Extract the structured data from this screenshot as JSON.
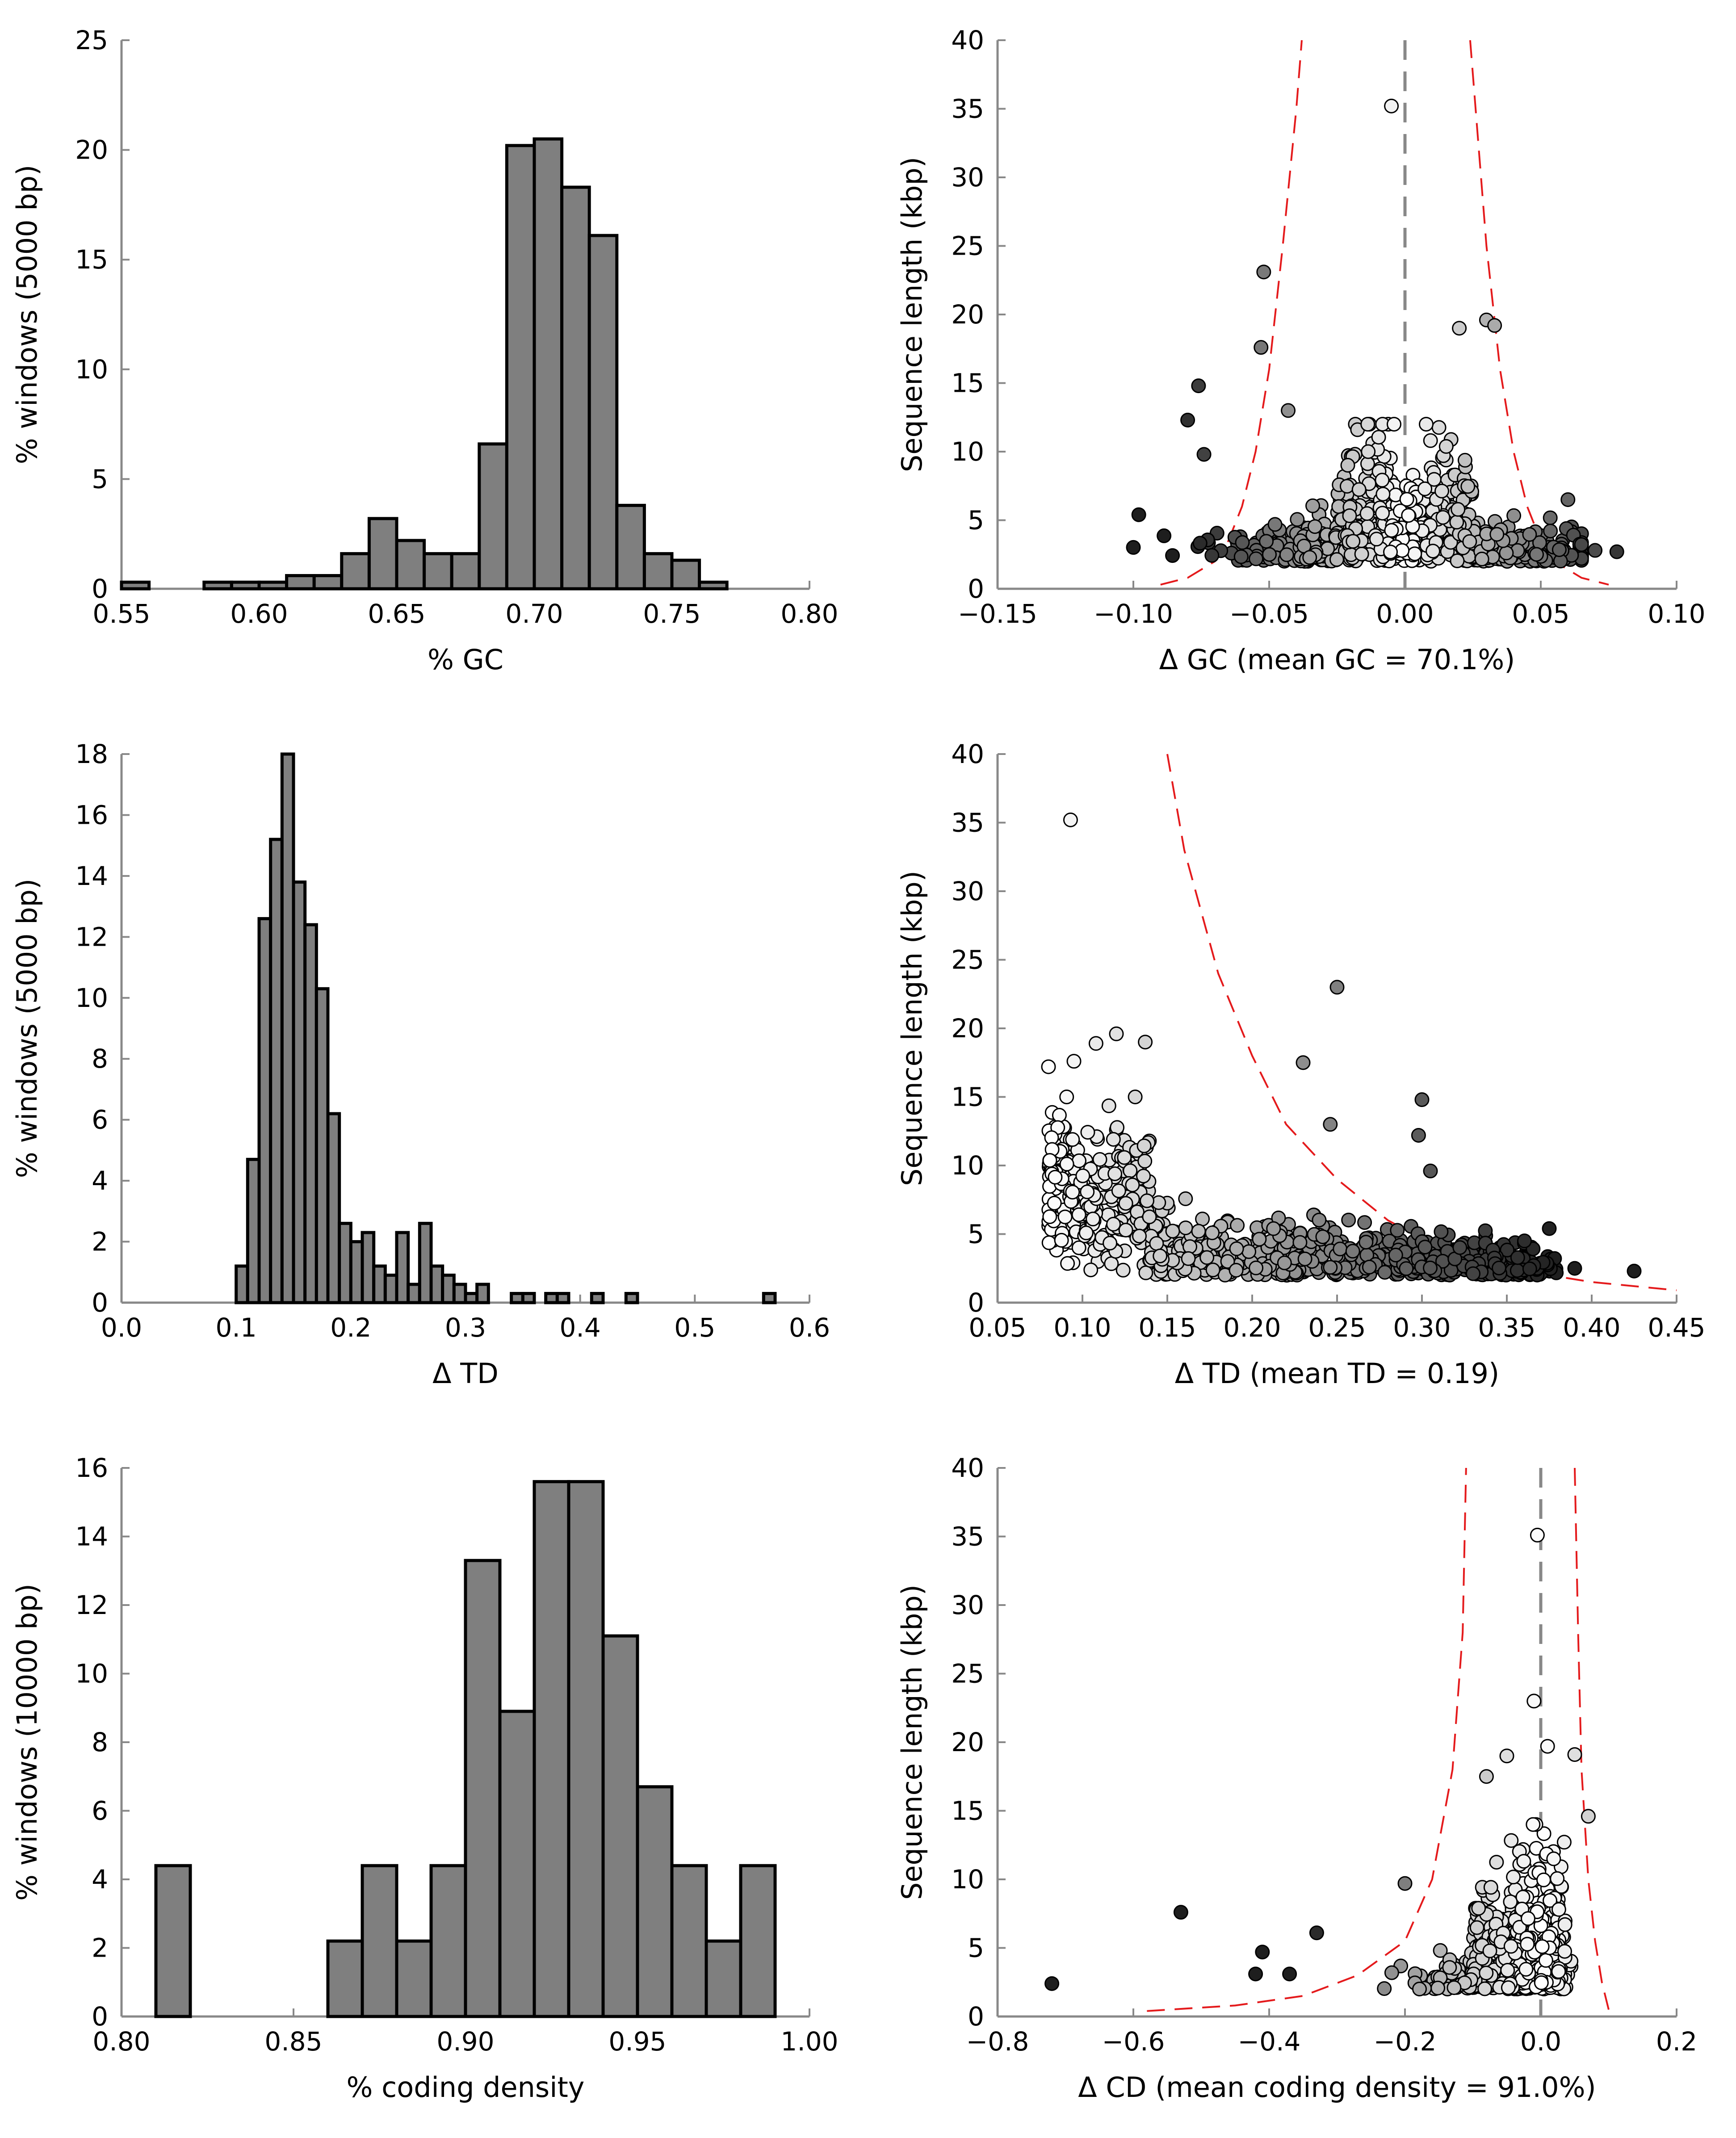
{
  "chart_data": [
    {
      "type": "bar",
      "panel": "gc-histogram",
      "xlabel": "% GC",
      "ylabel": "% windows (5000 bp)",
      "xlim": [
        0.55,
        0.8
      ],
      "ylim": [
        0,
        25
      ],
      "xticks": [
        "0.55",
        "0.60",
        "0.65",
        "0.70",
        "0.75",
        "0.80"
      ],
      "yticks": [
        "0",
        "5",
        "10",
        "15",
        "20",
        "25"
      ],
      "bin_width": 0.01,
      "bins": [
        {
          "x": 0.55,
          "value": 0.3
        },
        {
          "x": 0.58,
          "value": 0.3
        },
        {
          "x": 0.59,
          "value": 0.3
        },
        {
          "x": 0.6,
          "value": 0.3
        },
        {
          "x": 0.61,
          "value": 0.6
        },
        {
          "x": 0.62,
          "value": 0.6
        },
        {
          "x": 0.63,
          "value": 1.6
        },
        {
          "x": 0.64,
          "value": 3.2
        },
        {
          "x": 0.65,
          "value": 2.2
        },
        {
          "x": 0.66,
          "value": 1.6
        },
        {
          "x": 0.67,
          "value": 1.6
        },
        {
          "x": 0.68,
          "value": 6.6
        },
        {
          "x": 0.69,
          "value": 20.2
        },
        {
          "x": 0.7,
          "value": 20.5
        },
        {
          "x": 0.71,
          "value": 18.3
        },
        {
          "x": 0.72,
          "value": 16.1
        },
        {
          "x": 0.73,
          "value": 3.8
        },
        {
          "x": 0.74,
          "value": 1.6
        },
        {
          "x": 0.75,
          "value": 1.3
        },
        {
          "x": 0.76,
          "value": 0.3
        }
      ]
    },
    {
      "type": "scatter",
      "panel": "gc-scatter",
      "xlabel": "Δ GC (mean GC = 70.1%)",
      "ylabel": "Sequence length (kbp)",
      "xlim": [
        -0.15,
        0.1
      ],
      "ylim": [
        0,
        40
      ],
      "xticks": [
        "−0.15",
        "−0.10",
        "−0.05",
        "0.00",
        "0.05",
        "0.10"
      ],
      "yticks": [
        "0",
        "5",
        "10",
        "15",
        "20",
        "25",
        "30",
        "35",
        "40"
      ],
      "center_line": 0.0,
      "threshold_curves": [
        [
          [
            -0.09,
            0.3
          ],
          [
            -0.08,
            0.8
          ],
          [
            -0.07,
            2
          ],
          [
            -0.065,
            3.5
          ],
          [
            -0.06,
            6
          ],
          [
            -0.055,
            10
          ],
          [
            -0.05,
            16
          ],
          [
            -0.045,
            25
          ],
          [
            -0.04,
            35
          ],
          [
            -0.038,
            40
          ]
        ],
        [
          [
            0.024,
            40
          ],
          [
            0.026,
            35
          ],
          [
            0.03,
            25
          ],
          [
            0.035,
            16
          ],
          [
            0.04,
            10
          ],
          [
            0.045,
            6
          ],
          [
            0.05,
            3.5
          ],
          [
            0.055,
            2
          ],
          [
            0.065,
            0.8
          ],
          [
            0.075,
            0.3
          ]
        ]
      ],
      "highlighted_points": [
        {
          "x": -0.005,
          "y": 35.2
        },
        {
          "x": -0.052,
          "y": 23.1
        },
        {
          "x": -0.053,
          "y": 17.6
        },
        {
          "x": -0.076,
          "y": 14.8
        },
        {
          "x": -0.08,
          "y": 12.3
        },
        {
          "x": -0.074,
          "y": 9.8
        },
        {
          "x": -0.043,
          "y": 13.0
        },
        {
          "x": -0.098,
          "y": 5.4
        },
        {
          "x": 0.078,
          "y": 2.7
        },
        {
          "x": 0.02,
          "y": 19.0
        },
        {
          "x": 0.03,
          "y": 19.6
        },
        {
          "x": 0.033,
          "y": 19.2
        },
        {
          "x": 0.06,
          "y": 6.5
        },
        {
          "x": 0.07,
          "y": 2.8
        }
      ]
    },
    {
      "type": "bar",
      "panel": "td-histogram",
      "xlabel": "Δ TD",
      "ylabel": "% windows (5000 bp)",
      "xlim": [
        0.0,
        0.6
      ],
      "ylim": [
        0,
        18
      ],
      "xticks": [
        "0.0",
        "0.1",
        "0.2",
        "0.3",
        "0.4",
        "0.5",
        "0.6"
      ],
      "yticks": [
        "0",
        "2",
        "4",
        "6",
        "8",
        "10",
        "12",
        "14",
        "16",
        "18"
      ],
      "bin_width": 0.01,
      "bins": [
        {
          "x": 0.1,
          "value": 1.2
        },
        {
          "x": 0.11,
          "value": 4.7
        },
        {
          "x": 0.12,
          "value": 12.6
        },
        {
          "x": 0.13,
          "value": 15.2
        },
        {
          "x": 0.14,
          "value": 18.0
        },
        {
          "x": 0.15,
          "value": 13.8
        },
        {
          "x": 0.16,
          "value": 12.4
        },
        {
          "x": 0.17,
          "value": 10.3
        },
        {
          "x": 0.18,
          "value": 6.2
        },
        {
          "x": 0.19,
          "value": 2.6
        },
        {
          "x": 0.2,
          "value": 2.0
        },
        {
          "x": 0.21,
          "value": 2.3
        },
        {
          "x": 0.22,
          "value": 1.2
        },
        {
          "x": 0.23,
          "value": 0.9
        },
        {
          "x": 0.24,
          "value": 2.3
        },
        {
          "x": 0.25,
          "value": 0.6
        },
        {
          "x": 0.26,
          "value": 2.6
        },
        {
          "x": 0.27,
          "value": 1.2
        },
        {
          "x": 0.28,
          "value": 0.9
        },
        {
          "x": 0.29,
          "value": 0.6
        },
        {
          "x": 0.3,
          "value": 0.3
        },
        {
          "x": 0.31,
          "value": 0.6
        },
        {
          "x": 0.34,
          "value": 0.3
        },
        {
          "x": 0.35,
          "value": 0.3
        },
        {
          "x": 0.37,
          "value": 0.3
        },
        {
          "x": 0.38,
          "value": 0.3
        },
        {
          "x": 0.41,
          "value": 0.3
        },
        {
          "x": 0.44,
          "value": 0.3
        },
        {
          "x": 0.56,
          "value": 0.3
        }
      ]
    },
    {
      "type": "scatter",
      "panel": "td-scatter",
      "xlabel": "Δ TD (mean TD = 0.19)",
      "ylabel": "Sequence length (kbp)",
      "xlim": [
        0.05,
        0.45
      ],
      "ylim": [
        0,
        40
      ],
      "xticks": [
        "0.05",
        "0.10",
        "0.15",
        "0.20",
        "0.25",
        "0.30",
        "0.35",
        "0.40",
        "0.45"
      ],
      "yticks": [
        "0",
        "5",
        "10",
        "15",
        "20",
        "25",
        "30",
        "35",
        "40"
      ],
      "threshold_curves": [
        [
          [
            0.15,
            40
          ],
          [
            0.16,
            33
          ],
          [
            0.18,
            24
          ],
          [
            0.2,
            18
          ],
          [
            0.22,
            13
          ],
          [
            0.25,
            9
          ],
          [
            0.28,
            6
          ],
          [
            0.31,
            4
          ],
          [
            0.35,
            2.5
          ],
          [
            0.4,
            1.5
          ],
          [
            0.45,
            0.9
          ]
        ]
      ],
      "highlighted_points": [
        {
          "x": 0.093,
          "y": 35.2
        },
        {
          "x": 0.25,
          "y": 23.0
        },
        {
          "x": 0.23,
          "y": 17.5
        },
        {
          "x": 0.3,
          "y": 14.8
        },
        {
          "x": 0.246,
          "y": 13.0
        },
        {
          "x": 0.298,
          "y": 12.2
        },
        {
          "x": 0.305,
          "y": 9.6
        },
        {
          "x": 0.12,
          "y": 19.6
        },
        {
          "x": 0.108,
          "y": 18.9
        },
        {
          "x": 0.137,
          "y": 19.0
        },
        {
          "x": 0.08,
          "y": 17.2
        },
        {
          "x": 0.095,
          "y": 17.6
        },
        {
          "x": 0.425,
          "y": 2.3
        },
        {
          "x": 0.39,
          "y": 2.5
        },
        {
          "x": 0.375,
          "y": 5.4
        }
      ]
    },
    {
      "type": "bar",
      "panel": "cd-histogram",
      "xlabel": "% coding density",
      "ylabel": "% windows (10000 bp)",
      "xlim": [
        0.8,
        1.0
      ],
      "ylim": [
        0,
        16
      ],
      "xticks": [
        "0.80",
        "0.85",
        "0.90",
        "0.95",
        "1.00"
      ],
      "yticks": [
        "0",
        "2",
        "4",
        "6",
        "8",
        "10",
        "12",
        "14",
        "16"
      ],
      "bin_width": 0.01,
      "bins": [
        {
          "x": 0.81,
          "value": 4.4
        },
        {
          "x": 0.86,
          "value": 2.2
        },
        {
          "x": 0.87,
          "value": 4.4
        },
        {
          "x": 0.88,
          "value": 2.2
        },
        {
          "x": 0.89,
          "value": 4.4
        },
        {
          "x": 0.9,
          "value": 13.3
        },
        {
          "x": 0.91,
          "value": 8.9
        },
        {
          "x": 0.92,
          "value": 15.6
        },
        {
          "x": 0.93,
          "value": 15.6
        },
        {
          "x": 0.94,
          "value": 11.1
        },
        {
          "x": 0.95,
          "value": 6.7
        },
        {
          "x": 0.96,
          "value": 4.4
        },
        {
          "x": 0.97,
          "value": 2.2
        },
        {
          "x": 0.98,
          "value": 4.4
        }
      ]
    },
    {
      "type": "scatter",
      "panel": "cd-scatter",
      "xlabel": "Δ CD (mean coding density = 91.0%)",
      "ylabel": "Sequence length (kbp)",
      "xlim": [
        -0.8,
        0.2
      ],
      "ylim": [
        0,
        40
      ],
      "xticks": [
        "−0.8",
        "−0.6",
        "−0.4",
        "−0.2",
        "0.0",
        "0.2"
      ],
      "yticks": [
        "0",
        "5",
        "10",
        "15",
        "20",
        "25",
        "30",
        "35",
        "40"
      ],
      "center_line": 0.0,
      "threshold_curves": [
        [
          [
            -0.58,
            0.4
          ],
          [
            -0.45,
            0.8
          ],
          [
            -0.35,
            1.5
          ],
          [
            -0.27,
            3
          ],
          [
            -0.2,
            5.5
          ],
          [
            -0.16,
            10
          ],
          [
            -0.13,
            18
          ],
          [
            -0.115,
            28
          ],
          [
            -0.11,
            40
          ]
        ],
        [
          [
            0.05,
            40
          ],
          [
            0.055,
            28
          ],
          [
            0.06,
            18
          ],
          [
            0.07,
            10
          ],
          [
            0.08,
            5.5
          ],
          [
            0.09,
            2.5
          ],
          [
            0.1,
            0.5
          ]
        ]
      ],
      "highlighted_points": [
        {
          "x": -0.005,
          "y": 35.1
        },
        {
          "x": -0.01,
          "y": 23.0
        },
        {
          "x": -0.53,
          "y": 7.6
        },
        {
          "x": -0.72,
          "y": 2.4
        },
        {
          "x": -0.33,
          "y": 6.1
        },
        {
          "x": -0.41,
          "y": 4.7
        },
        {
          "x": -0.42,
          "y": 3.1
        },
        {
          "x": -0.37,
          "y": 3.1
        },
        {
          "x": -0.05,
          "y": 19.0
        },
        {
          "x": 0.01,
          "y": 19.7
        },
        {
          "x": 0.05,
          "y": 19.1
        },
        {
          "x": 0.07,
          "y": 14.6
        },
        {
          "x": -0.2,
          "y": 9.7
        },
        {
          "x": -0.08,
          "y": 17.5
        }
      ]
    }
  ]
}
